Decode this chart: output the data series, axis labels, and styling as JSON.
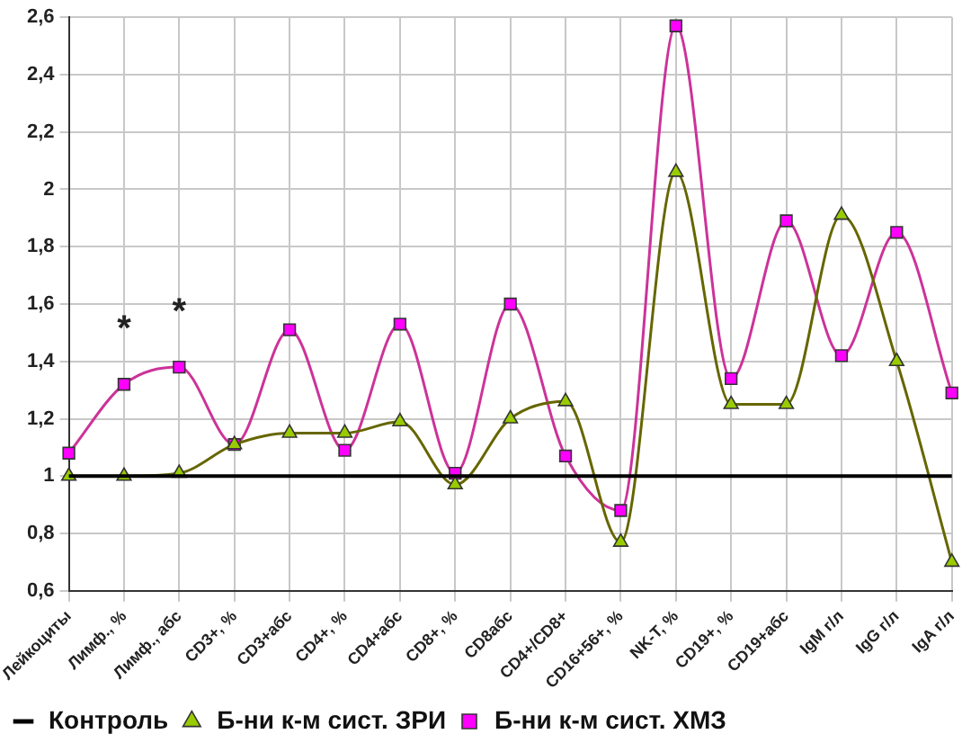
{
  "chart_data": {
    "type": "line",
    "categories": [
      "Лейкоциты",
      "Лимф., %",
      "Лимф., абс",
      "CD3+, %",
      "CD3+абс",
      "CD4+, %",
      "CD4+абс",
      "CD8+, %",
      "CD8абс",
      "CD4+/CD8+",
      "CD16+56+, %",
      "NK-T, %",
      "CD19+, %",
      "CD19+абс",
      "IgM г/л",
      "IgG г/л",
      "IgA г/л"
    ],
    "series": [
      {
        "name": "Б-ни к-м сист. ХМЗ",
        "color": "#cc3399",
        "marker": "square",
        "values": [
          1.08,
          1.32,
          1.38,
          1.11,
          1.51,
          1.09,
          1.53,
          1.01,
          1.6,
          1.07,
          0.88,
          2.57,
          1.34,
          1.89,
          1.42,
          1.85,
          1.29
        ]
      },
      {
        "name": "Б-ни к-м сист. ЗРИ",
        "color": "#666600",
        "marker": "triangle",
        "values": [
          1.0,
          1.0,
          1.01,
          1.11,
          1.15,
          1.15,
          1.19,
          0.97,
          1.2,
          1.26,
          0.77,
          2.06,
          1.25,
          1.25,
          1.91,
          1.4,
          0.7
        ]
      },
      {
        "name": "Контроль",
        "color": "#000000",
        "marker": "none",
        "values": [
          1,
          1,
          1,
          1,
          1,
          1,
          1,
          1,
          1,
          1,
          1,
          1,
          1,
          1,
          1,
          1,
          1
        ]
      }
    ],
    "ylim": [
      0.6,
      2.6
    ],
    "yticks": [
      {
        "value": 0.6,
        "label": "0,6"
      },
      {
        "value": 0.8,
        "label": "0,8"
      },
      1,
      {
        "value": 1.2,
        "label": "1,2"
      },
      {
        "value": 1.4,
        "label": "1,4"
      },
      {
        "value": 1.6,
        "label": "1,6"
      },
      {
        "value": 1.8,
        "label": "1,8"
      },
      2,
      {
        "value": 2.2,
        "label": "2,2"
      },
      {
        "value": 2.4,
        "label": "2,4"
      },
      {
        "value": 2.6,
        "label": "2,6"
      }
    ],
    "grid": true,
    "legend": "bottom",
    "annotations": [
      {
        "text": "*",
        "x": "Лимф., %",
        "y": 1.32
      },
      {
        "text": "*",
        "x": "Лимф., абс",
        "y": 1.38
      }
    ]
  }
}
